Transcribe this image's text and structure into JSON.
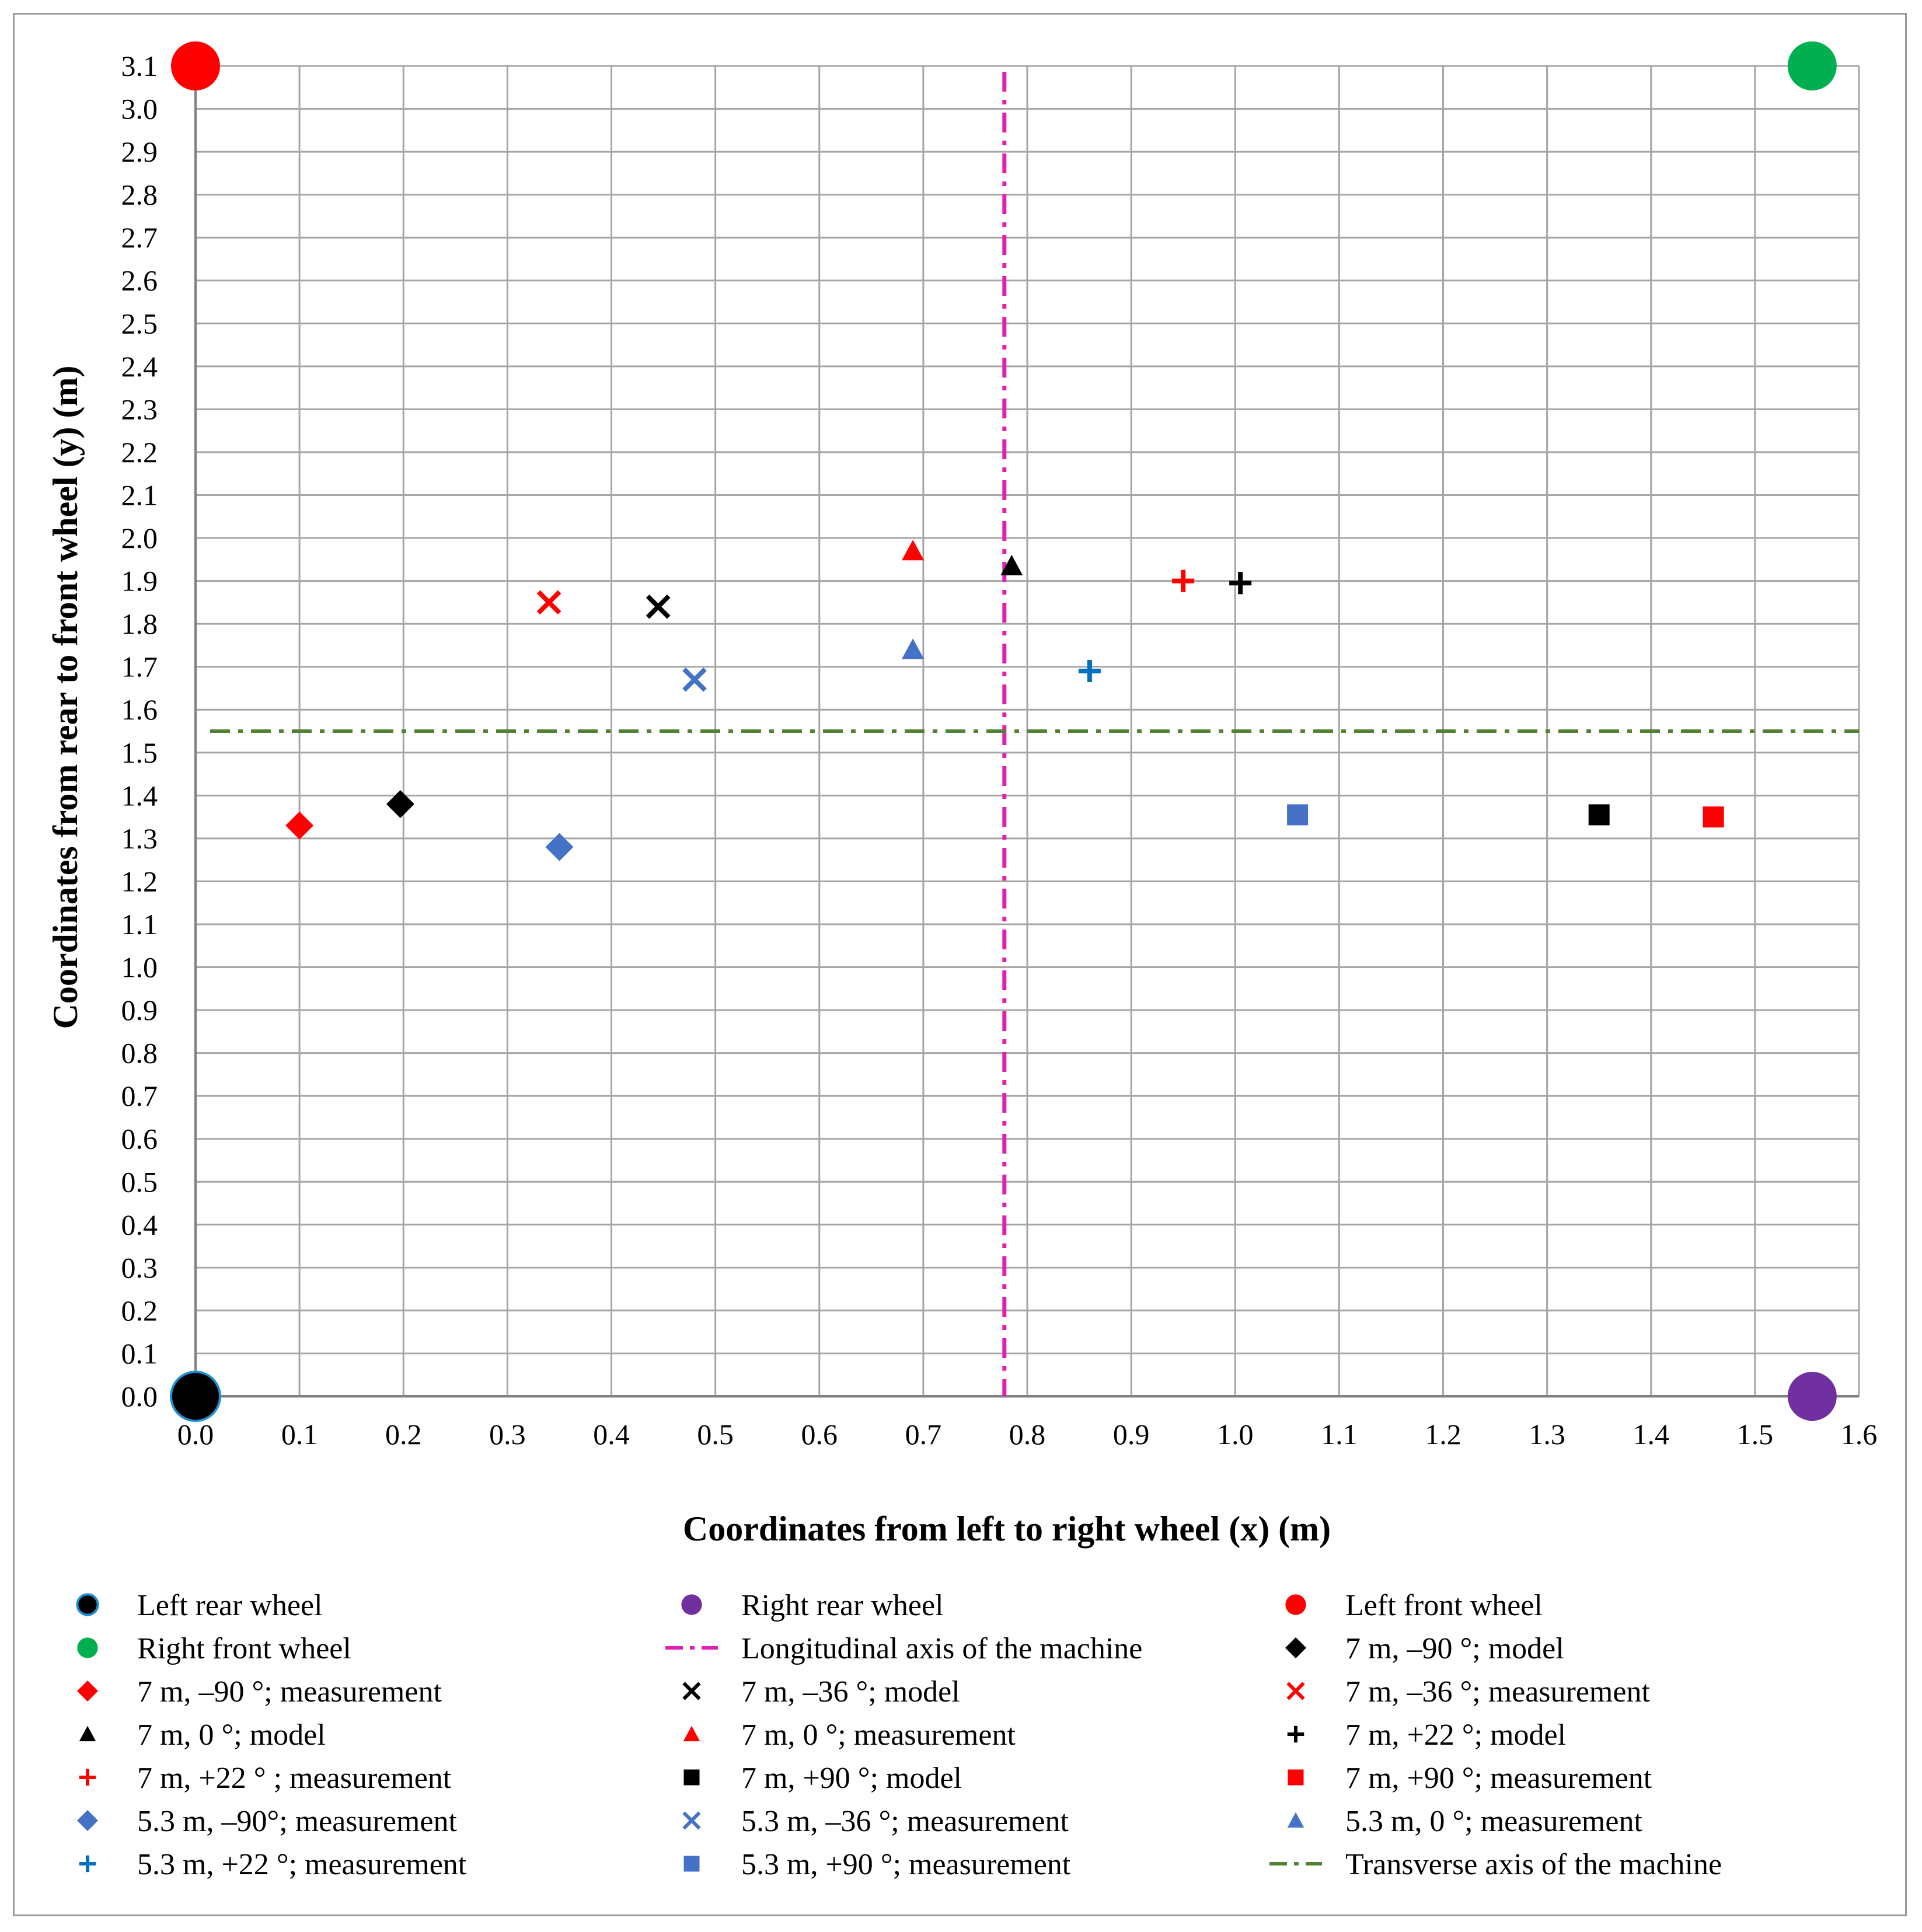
{
  "chart_data": {
    "type": "scatter",
    "xlabel": "Coordinates from left to right wheel (x) (m)",
    "ylabel": "Coordinates from rear to front wheel (y) (m)",
    "xlim": [
      0,
      1.6
    ],
    "ylim": [
      0,
      3.1
    ],
    "xticks": [
      "0.0",
      "0.1",
      "0.2",
      "0.3",
      "0.4",
      "0.5",
      "0.6",
      "0.7",
      "0.8",
      "0.9",
      "1.0",
      "1.1",
      "1.2",
      "1.3",
      "1.4",
      "1.5",
      "1.6"
    ],
    "yticks": [
      "0.0",
      "0.1",
      "0.2",
      "0.3",
      "0.4",
      "0.5",
      "0.6",
      "0.7",
      "0.8",
      "0.9",
      "1.0",
      "1.1",
      "1.2",
      "1.3",
      "1.4",
      "1.5",
      "1.6",
      "1.7",
      "1.8",
      "1.9",
      "2.0",
      "2.1",
      "2.2",
      "2.3",
      "2.4",
      "2.5",
      "2.6",
      "2.7",
      "2.8",
      "2.9",
      "3.0",
      "3.1"
    ],
    "grid": true,
    "legend_position": "bottom",
    "series": [
      {
        "name": "Left rear wheel",
        "marker": "circle-large",
        "color": "#000000",
        "edge": "#1f8fd0",
        "points": [
          [
            0.0,
            0.0
          ]
        ]
      },
      {
        "name": "Right rear wheel",
        "marker": "circle-large",
        "color": "#7030a0",
        "points": [
          [
            1.555,
            0.0
          ]
        ]
      },
      {
        "name": "Left front wheel",
        "marker": "circle-large",
        "color": "#ff0000",
        "points": [
          [
            0.0,
            3.1
          ]
        ]
      },
      {
        "name": "Right front wheel",
        "marker": "circle-large",
        "color": "#00b050",
        "points": [
          [
            1.555,
            3.1
          ]
        ]
      },
      {
        "name": "Longitudinal axis of the machine",
        "marker": "vline-dashdot",
        "color": "#e020b0",
        "x": 0.778
      },
      {
        "name": "7 m, –90 °; model",
        "marker": "diamond",
        "color": "#000000",
        "points": [
          [
            0.197,
            1.38
          ]
        ]
      },
      {
        "name": "7 m, –90 °; measurement",
        "marker": "diamond",
        "color": "#ff0000",
        "points": [
          [
            0.1,
            1.33
          ]
        ]
      },
      {
        "name": "7 m, –36 °; model",
        "marker": "x",
        "color": "#000000",
        "points": [
          [
            0.445,
            1.84
          ]
        ]
      },
      {
        "name": "7 m, –36 °;  measurement",
        "marker": "x",
        "color": "#ff0000",
        "points": [
          [
            0.34,
            1.85
          ]
        ]
      },
      {
        "name": "7 m, 0 °; model",
        "marker": "triangle",
        "color": "#000000",
        "points": [
          [
            0.785,
            1.935
          ]
        ]
      },
      {
        "name": "7 m, 0 °;  measurement",
        "marker": "triangle",
        "color": "#ff0000",
        "points": [
          [
            0.69,
            1.97
          ]
        ]
      },
      {
        "name": "7 m, +22 °; model",
        "marker": "plus",
        "color": "#000000",
        "points": [
          [
            1.005,
            1.895
          ]
        ]
      },
      {
        "name": "7 m, +22 ° ;  measurement",
        "marker": "plus",
        "color": "#ff0000",
        "points": [
          [
            0.95,
            1.9
          ]
        ]
      },
      {
        "name": "7 m, +90 °; model",
        "marker": "square",
        "color": "#000000",
        "points": [
          [
            1.35,
            1.355
          ]
        ]
      },
      {
        "name": "7 m, +90 °;  measurement",
        "marker": "square",
        "color": "#ff0000",
        "points": [
          [
            1.46,
            1.35
          ]
        ]
      },
      {
        "name": "5.3 m, –90°;  measurement",
        "marker": "diamond",
        "color": "#4472c4",
        "points": [
          [
            0.35,
            1.28
          ]
        ]
      },
      {
        "name": "5.3 m, –36 °;  measurement",
        "marker": "x",
        "color": "#4472c4",
        "points": [
          [
            0.48,
            1.67
          ]
        ]
      },
      {
        "name": "5.3 m, 0 °;  measurement",
        "marker": "triangle",
        "color": "#4472c4",
        "points": [
          [
            0.69,
            1.74
          ]
        ]
      },
      {
        "name": "5.3 m, +22 °;  measurement",
        "marker": "plus",
        "color": "#0070c0",
        "points": [
          [
            0.86,
            1.69
          ]
        ]
      },
      {
        "name": "5.3 m, +90 °;  measurement",
        "marker": "square",
        "color": "#4472c4",
        "points": [
          [
            1.06,
            1.355
          ]
        ]
      },
      {
        "name": "Transverse axis of the machine",
        "marker": "hline-dashdot",
        "color": "#548235",
        "y": 1.55
      }
    ]
  }
}
